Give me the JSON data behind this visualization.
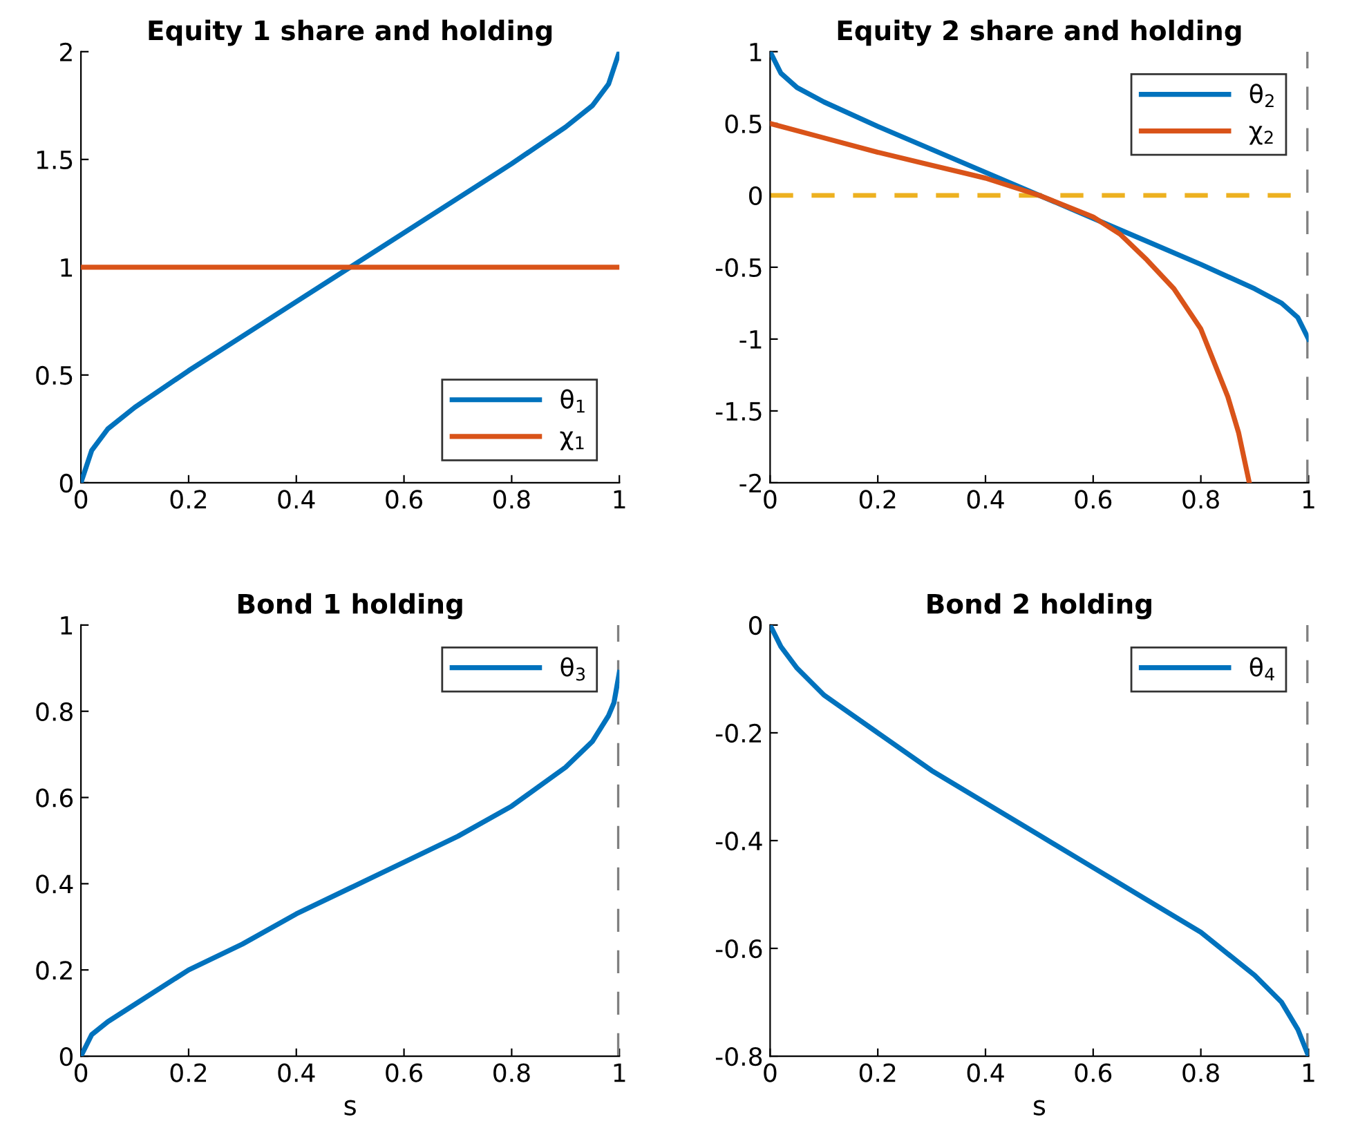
{
  "chart_data": [
    {
      "type": "line",
      "title": "Equity 1 share and holding",
      "xlim": [
        0,
        1
      ],
      "xticks": [
        0,
        0.2,
        0.4,
        0.6,
        0.8,
        1
      ],
      "ylim": [
        0,
        2
      ],
      "yticks": [
        0,
        0.5,
        1,
        1.5,
        2
      ],
      "grid": false,
      "legend": "bottom right",
      "series": [
        {
          "name": "θ$_{1}$",
          "color": "#0072bd",
          "x": [
            0,
            0.02,
            0.05,
            0.1,
            0.2,
            0.3,
            0.4,
            0.5,
            0.6,
            0.7,
            0.8,
            0.9,
            0.95,
            0.98,
            1
          ],
          "values": [
            0,
            0.15,
            0.25,
            0.35,
            0.52,
            0.68,
            0.84,
            1.0,
            1.16,
            1.32,
            1.48,
            1.65,
            1.75,
            1.85,
            2
          ]
        },
        {
          "name": "χ$_{1}$",
          "color": "#d95319",
          "x": [
            0,
            1
          ],
          "values": [
            1,
            1
          ]
        }
      ]
    },
    {
      "type": "line",
      "title": "Equity 2 share and holding",
      "xlim": [
        0,
        1
      ],
      "xticks": [
        0,
        0.2,
        0.4,
        0.6,
        0.8,
        1
      ],
      "ylim": [
        -2,
        1
      ],
      "yticks": [
        -2,
        -1.5,
        -1,
        -0.5,
        0,
        0.5,
        1
      ],
      "grid": false,
      "legend": "top right",
      "series": [
        {
          "name": "θ$_{2}$",
          "color": "#0072bd",
          "x": [
            0,
            0.02,
            0.05,
            0.1,
            0.2,
            0.3,
            0.4,
            0.5,
            0.6,
            0.7,
            0.8,
            0.9,
            0.95,
            0.98,
            1
          ],
          "values": [
            1,
            0.85,
            0.75,
            0.65,
            0.48,
            0.32,
            0.16,
            0,
            -0.16,
            -0.32,
            -0.48,
            -0.65,
            -0.75,
            -0.85,
            -1
          ]
        },
        {
          "name": "χ$_{2}$",
          "color": "#d95319",
          "x": [
            0,
            0.1,
            0.2,
            0.3,
            0.4,
            0.5,
            0.6,
            0.65,
            0.7,
            0.75,
            0.8,
            0.85,
            0.87,
            0.89
          ],
          "values": [
            0.5,
            0.4,
            0.3,
            0.21,
            0.12,
            0,
            -0.15,
            -0.27,
            -0.45,
            -0.65,
            -0.93,
            -1.4,
            -1.65,
            -2
          ]
        }
      ],
      "ref_lines": [
        {
          "axis": "y",
          "value": 0,
          "color": "#edb120",
          "line_style": "dashed"
        },
        {
          "axis": "x",
          "value": 1,
          "color": "#808080",
          "line_style": "dashed"
        }
      ]
    },
    {
      "type": "line",
      "title": "Bond 1 holding",
      "xlabel": "s",
      "xlim": [
        0,
        1
      ],
      "xticks": [
        0,
        0.2,
        0.4,
        0.6,
        0.8,
        1
      ],
      "ylim": [
        0,
        1
      ],
      "yticks": [
        0,
        0.2,
        0.4,
        0.6,
        0.8,
        1
      ],
      "grid": false,
      "legend": "top right",
      "series": [
        {
          "name": "θ$_{3}$",
          "color": "#0072bd",
          "x": [
            0,
            0.02,
            0.05,
            0.1,
            0.2,
            0.3,
            0.4,
            0.5,
            0.6,
            0.7,
            0.8,
            0.9,
            0.95,
            0.98,
            0.99,
            1
          ],
          "values": [
            0,
            0.05,
            0.08,
            0.12,
            0.2,
            0.26,
            0.33,
            0.39,
            0.45,
            0.51,
            0.58,
            0.67,
            0.73,
            0.79,
            0.82,
            0.89
          ]
        }
      ],
      "ref_lines": [
        {
          "axis": "x",
          "value": 1,
          "color": "#808080",
          "line_style": "dashed"
        }
      ]
    },
    {
      "type": "line",
      "title": "Bond 2 holding",
      "xlabel": "s",
      "xlim": [
        0,
        1
      ],
      "xticks": [
        0,
        0.2,
        0.4,
        0.6,
        0.8,
        1
      ],
      "ylim": [
        -0.8,
        0
      ],
      "yticks": [
        -0.8,
        -0.6,
        -0.4,
        -0.2,
        0
      ],
      "grid": false,
      "legend": "top right",
      "series": [
        {
          "name": "θ$_{4}$",
          "color": "#0072bd",
          "x": [
            0,
            0.02,
            0.05,
            0.1,
            0.2,
            0.3,
            0.4,
            0.5,
            0.6,
            0.7,
            0.8,
            0.9,
            0.95,
            0.98,
            1
          ],
          "values": [
            0,
            -0.04,
            -0.08,
            -0.13,
            -0.2,
            -0.27,
            -0.33,
            -0.39,
            -0.45,
            -0.51,
            -0.57,
            -0.65,
            -0.7,
            -0.75,
            -0.8
          ]
        }
      ],
      "ref_lines": [
        {
          "axis": "x",
          "value": 1,
          "color": "#808080",
          "line_style": "dashed"
        }
      ]
    }
  ]
}
